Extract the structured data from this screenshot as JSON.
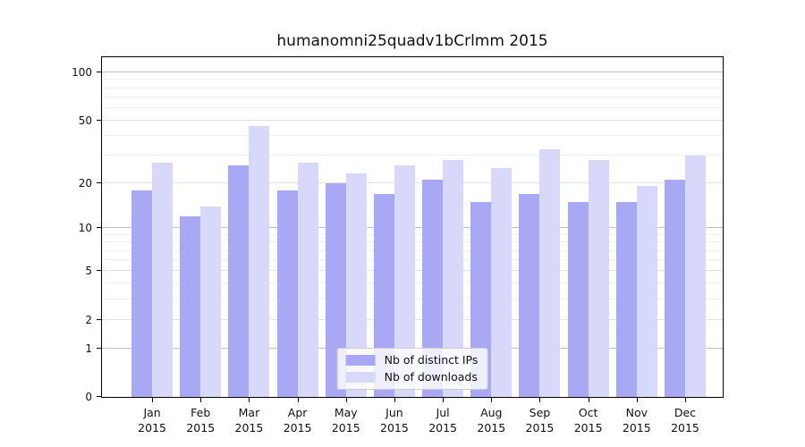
{
  "chart_data": {
    "type": "bar",
    "title": "humanomni25quadv1bCrlmm 2015",
    "categories": [
      "Jan",
      "Feb",
      "Mar",
      "Apr",
      "May",
      "Jun",
      "Jul",
      "Aug",
      "Sep",
      "Oct",
      "Nov",
      "Dec"
    ],
    "year": "2015",
    "series": [
      {
        "name": "Nb of distinct IPs",
        "color": "#a8a8f5",
        "values": [
          18,
          12,
          26,
          18,
          20,
          17,
          21,
          15,
          17,
          15,
          15,
          21
        ]
      },
      {
        "name": "Nb of downloads",
        "color": "#d8d8fa",
        "values": [
          27,
          14,
          46,
          27,
          23,
          26,
          28,
          25,
          33,
          28,
          19,
          30
        ]
      }
    ],
    "y_axis": {
      "scale": "log1p",
      "ylim": [
        0,
        100
      ],
      "ticks": [
        100,
        50,
        20,
        10,
        5,
        2,
        1,
        0
      ],
      "gridlines_decade": [
        1,
        10,
        100
      ],
      "gridlines_labeled": [
        2,
        5,
        20,
        50
      ],
      "gridlines_minor": [
        3,
        4,
        6,
        7,
        8,
        9,
        30,
        40,
        60,
        70,
        80,
        90
      ]
    },
    "legend": {
      "position": "bottom-center"
    },
    "colors": {
      "grid_decade": "#c2c2c2",
      "grid_labeled": "#e3e3e3",
      "grid_minor": "#f0f0f0",
      "spine": "#000000",
      "background": "#ffffff"
    }
  }
}
